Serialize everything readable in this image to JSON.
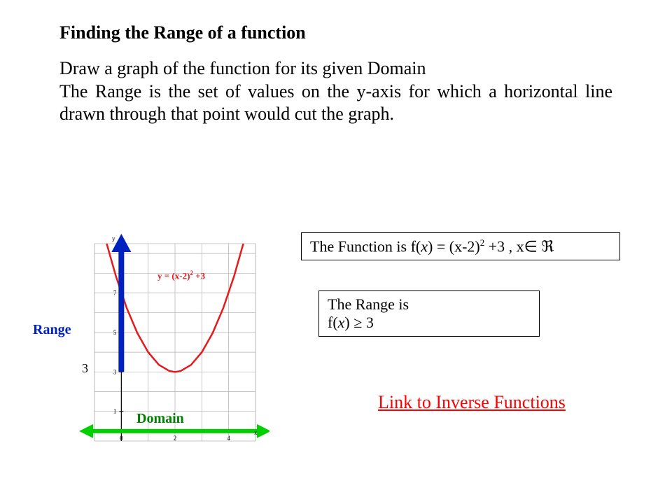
{
  "title": "Finding the Range of a function",
  "paragraph_html": "Draw a graph of the function for its given Domain<br>The Range is the set of values on the y-axis for which a horizontal line drawn through that point would cut the graph.",
  "chart": {
    "type": "line",
    "equation_html": "y = (x-2)<sup>2</sup> +3",
    "curve_color": "#e41a1c",
    "curve_width": 2.5,
    "grid_color": "#b0b0b0",
    "grid_width": 0.7,
    "background_color": "#ffffff",
    "axis_color": "#000000",
    "range_arrow_color": "#0020c0",
    "domain_arrow_color": "#00d000",
    "xlim": [
      -1,
      5
    ],
    "ylim": [
      -0.5,
      9.5
    ],
    "x_ticks": [
      0,
      2,
      4
    ],
    "x_tick_labels": [
      "0",
      "2",
      "4"
    ],
    "y_ticks": [
      1,
      3,
      5,
      7
    ],
    "y_tick_label_3": "3",
    "x_axis_label": "x",
    "y_axis_label": "y",
    "curve_points_x": [
      -1.0,
      -0.6,
      -0.2,
      0.2,
      0.6,
      1.0,
      1.4,
      1.8,
      2.0,
      2.2,
      2.6,
      3.0,
      3.4,
      3.8,
      4.2,
      4.6,
      5.0
    ],
    "curve_points_y": [
      12.0,
      9.76,
      7.84,
      6.24,
      4.96,
      4.0,
      3.36,
      3.04,
      3.0,
      3.04,
      3.36,
      4.0,
      4.96,
      6.24,
      7.84,
      9.76,
      12.0
    ],
    "range_label": "Range",
    "range_label_color": "#0020c0",
    "domain_label": "Domain",
    "domain_label_color": "#008000"
  },
  "function_box_html": "The Function is f(<span class=\"fn-x\">x</span>) = (x-2)<sup>2</sup> +3 ,  x&isin;&nbsp;&real;",
  "range_box_html": "The Range is<br>f(<span class=\"fn-x\">x</span>) &ge; 3",
  "link_text": "Link to Inverse Functions"
}
